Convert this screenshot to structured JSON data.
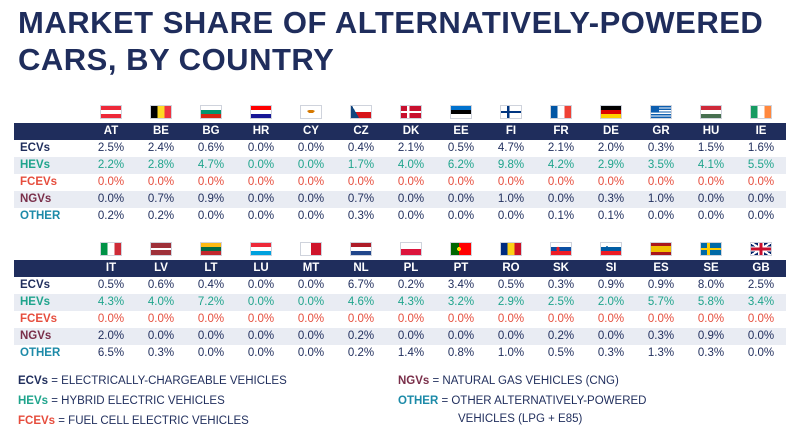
{
  "title": "MARKET SHARE OF ALTERNATIVELY-POWERED CARS, BY COUNTRY",
  "row_labels": [
    "ECVs",
    "HEVs",
    "FCEVs",
    "NGVs",
    "OTHER"
  ],
  "colors": {
    "navy": "#1f2d5c",
    "ecv": "#1f2d5c",
    "hev": "#1fa48c",
    "fcev": "#e64d3d",
    "ngv": "#7a2f4a",
    "other": "#1c8aa8",
    "row_alt": "#e9ecf3"
  },
  "table1": {
    "countries": [
      "AT",
      "BE",
      "BG",
      "HR",
      "CY",
      "CZ",
      "DK",
      "EE",
      "FI",
      "FR",
      "DE",
      "GR",
      "HU",
      "IE"
    ],
    "flags": [
      "austria-flag",
      "belgium-flag",
      "bulgaria-flag",
      "croatia-flag",
      "cyprus-flag",
      "czechia-flag",
      "denmark-flag",
      "estonia-flag",
      "finland-flag",
      "france-flag",
      "germany-flag",
      "greece-flag",
      "hungary-flag",
      "ireland-flag"
    ],
    "rows": [
      [
        "2.5%",
        "2.4%",
        "0.6%",
        "0.0%",
        "0.0%",
        "0.4%",
        "2.1%",
        "0.5%",
        "4.7%",
        "2.1%",
        "2.0%",
        "0.3%",
        "1.5%",
        "1.6%"
      ],
      [
        "2.2%",
        "2.8%",
        "4.7%",
        "0.0%",
        "0.0%",
        "1.7%",
        "4.0%",
        "6.2%",
        "9.8%",
        "4.2%",
        "2.9%",
        "3.5%",
        "4.1%",
        "5.5%"
      ],
      [
        "0.0%",
        "0.0%",
        "0.0%",
        "0.0%",
        "0.0%",
        "0.0%",
        "0.0%",
        "0.0%",
        "0.0%",
        "0.0%",
        "0.0%",
        "0.0%",
        "0.0%",
        "0.0%"
      ],
      [
        "0.0%",
        "0.7%",
        "0.9%",
        "0.0%",
        "0.0%",
        "0.7%",
        "0.0%",
        "0.0%",
        "1.0%",
        "0.0%",
        "0.3%",
        "1.0%",
        "0.0%",
        "0.0%"
      ],
      [
        "0.2%",
        "0.2%",
        "0.0%",
        "0.0%",
        "0.0%",
        "0.3%",
        "0.0%",
        "0.0%",
        "0.0%",
        "0.1%",
        "0.1%",
        "0.0%",
        "0.0%",
        "0.0%"
      ]
    ]
  },
  "table2": {
    "countries": [
      "IT",
      "LV",
      "LT",
      "LU",
      "MT",
      "NL",
      "PL",
      "PT",
      "RO",
      "SK",
      "SI",
      "ES",
      "SE",
      "GB"
    ],
    "flags": [
      "italy-flag",
      "latvia-flag",
      "lithuania-flag",
      "luxembourg-flag",
      "malta-flag",
      "netherlands-flag",
      "poland-flag",
      "portugal-flag",
      "romania-flag",
      "slovakia-flag",
      "slovenia-flag",
      "spain-flag",
      "sweden-flag",
      "uk-flag"
    ],
    "rows": [
      [
        "0.5%",
        "0.6%",
        "0.4%",
        "0.0%",
        "0.0%",
        "6.7%",
        "0.2%",
        "3.4%",
        "0.5%",
        "0.3%",
        "0.9%",
        "0.9%",
        "8.0%",
        "2.5%"
      ],
      [
        "4.3%",
        "4.0%",
        "7.2%",
        "0.0%",
        "0.0%",
        "4.6%",
        "4.3%",
        "3.2%",
        "2.9%",
        "2.5%",
        "2.0%",
        "5.7%",
        "5.8%",
        "3.4%"
      ],
      [
        "0.0%",
        "0.0%",
        "0.0%",
        "0.0%",
        "0.0%",
        "0.0%",
        "0.0%",
        "0.0%",
        "0.0%",
        "0.0%",
        "0.0%",
        "0.0%",
        "0.0%",
        "0.0%"
      ],
      [
        "2.0%",
        "0.0%",
        "0.0%",
        "0.0%",
        "0.0%",
        "0.2%",
        "0.0%",
        "0.0%",
        "0.0%",
        "0.2%",
        "0.0%",
        "0.3%",
        "0.9%",
        "0.0%"
      ],
      [
        "6.5%",
        "0.3%",
        "0.0%",
        "0.0%",
        "0.0%",
        "0.2%",
        "1.4%",
        "0.8%",
        "1.0%",
        "0.5%",
        "0.3%",
        "1.3%",
        "0.3%",
        "0.0%"
      ]
    ]
  },
  "legend": {
    "ecv": {
      "key": "ECVs",
      "text": " = ELECTRICALLY-CHARGEABLE VEHICLES"
    },
    "hev": {
      "key": "HEVs",
      "text": " = HYBRID ELECTRIC VEHICLES"
    },
    "fcev": {
      "key": "FCEVs",
      "text": " = FUEL CELL ELECTRIC VEHICLES"
    },
    "ngv": {
      "key": "NGVs",
      "text": " = NATURAL GAS VEHICLES (CNG)"
    },
    "other": {
      "key": "OTHER",
      "text": " = OTHER ALTERNATIVELY-POWERED",
      "text2": "VEHICLES (LPG + E85)"
    }
  }
}
